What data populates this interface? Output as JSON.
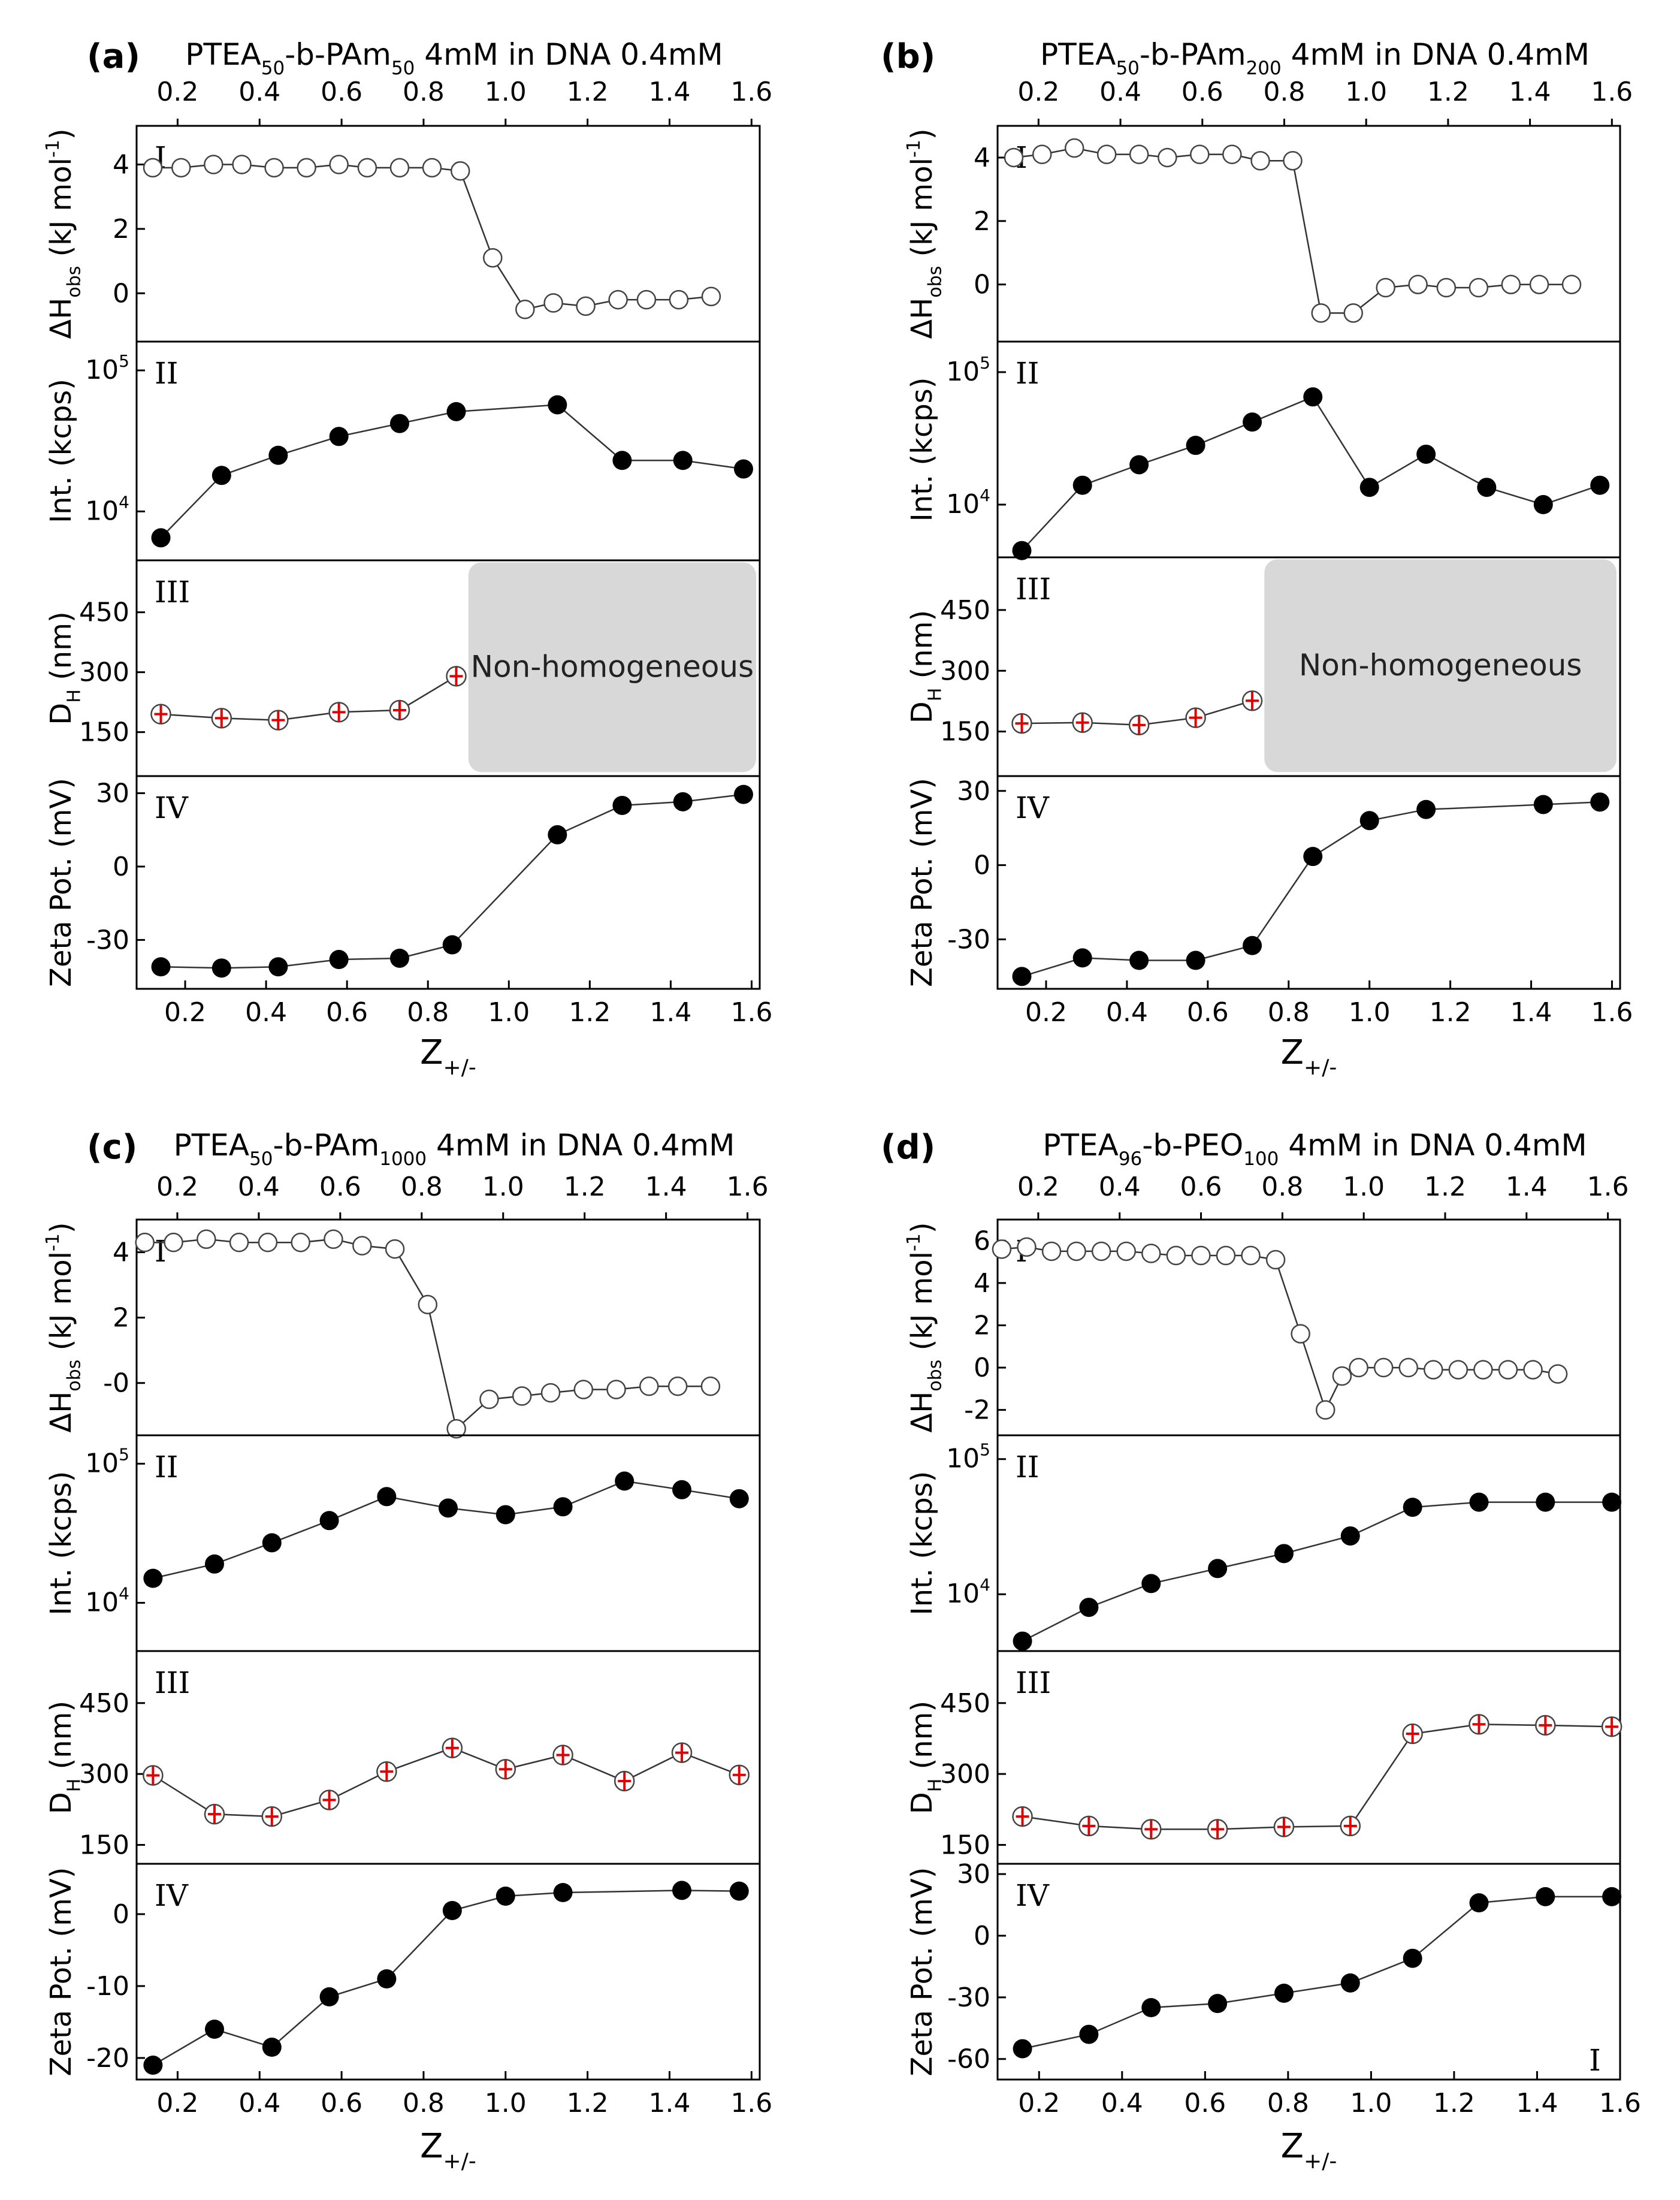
{
  "figure": {
    "colors": {
      "axis": "#000000",
      "line": "#333333",
      "marker_filled": "#000000",
      "marker_open": "#ffffff",
      "error_bar": "#e00000",
      "box_fill": "#d8d8d8"
    },
    "panel_numerals": [
      "I",
      "II",
      "III",
      "IV"
    ],
    "stray_mark": "I"
  },
  "chart_data": [
    {
      "id": "a",
      "type": "line",
      "letter": "(a)",
      "title_parts": [
        [
          "PTEA",
          ""
        ],
        [
          "50",
          "sub"
        ],
        [
          "-b-PAm",
          ""
        ],
        [
          "50",
          "sub"
        ],
        [
          " 4mM in DNA 0.4mM",
          ""
        ]
      ],
      "top_axis": {
        "range": [
          0.1,
          1.62
        ],
        "ticks": [
          "0.2",
          "0.4",
          "0.6",
          "0.8",
          "1.0",
          "1.2",
          "1.4",
          "1.6"
        ]
      },
      "xlabel": [
        "Z",
        "+/-"
      ],
      "x_bottom": {
        "range": [
          0.08,
          1.62
        ],
        "ticks": [
          "0.2",
          "0.4",
          "0.6",
          "0.8",
          "1.0",
          "1.2",
          "1.4",
          "1.6"
        ]
      },
      "series": [
        {
          "name": "I",
          "ylabel": [
            [
              "ΔH",
              ""
            ],
            [
              "obs",
              "sub"
            ],
            [
              " (kJ mol",
              ""
            ],
            [
              "-1",
              "sup"
            ],
            [
              ")",
              ""
            ]
          ],
          "scale": "linear",
          "ylim": [
            -1.5,
            5.2
          ],
          "yticks": [
            "0",
            "2",
            "4"
          ],
          "marker": "open",
          "x": [
            0.12,
            0.19,
            0.27,
            0.34,
            0.42,
            0.5,
            0.58,
            0.65,
            0.73,
            0.81,
            0.88,
            0.96,
            1.04,
            1.11,
            1.19,
            1.27,
            1.34,
            1.42,
            1.5
          ],
          "y": [
            3.9,
            3.9,
            4.0,
            4.0,
            3.9,
            3.9,
            4.0,
            3.9,
            3.9,
            3.9,
            3.8,
            1.1,
            -0.5,
            -0.3,
            -0.4,
            -0.2,
            -0.2,
            -0.2,
            -0.1
          ]
        },
        {
          "name": "II",
          "ylabel": [
            [
              "Int. (kcps)",
              ""
            ]
          ],
          "scale": "log",
          "ylim": [
            4500,
            160000
          ],
          "yticks": [
            "10000",
            "100000"
          ],
          "marker": "filled",
          "x": [
            0.14,
            0.29,
            0.43,
            0.58,
            0.73,
            0.87,
            1.12,
            1.28,
            1.43,
            1.58
          ],
          "y": [
            6500,
            18000,
            25000,
            34000,
            42000,
            51000,
            57000,
            23000,
            23000,
            20000
          ]
        },
        {
          "name": "III",
          "ylabel": [
            [
              "D",
              ""
            ],
            [
              "H",
              "sub"
            ],
            [
              " (nm)",
              ""
            ]
          ],
          "scale": "linear",
          "ylim": [
            40,
            580
          ],
          "yticks": [
            "150",
            "300",
            "450"
          ],
          "marker": "errbar",
          "x": [
            0.14,
            0.29,
            0.43,
            0.58,
            0.73,
            0.87
          ],
          "y": [
            195,
            185,
            180,
            200,
            205,
            290
          ],
          "box": {
            "x0": 0.9,
            "x1": 1.62,
            "y0": 50,
            "y1": 575,
            "label": "Non-homogeneous"
          }
        },
        {
          "name": "IV",
          "ylabel": [
            [
              "Zeta Pot. (mV)",
              ""
            ]
          ],
          "scale": "linear",
          "ylim": [
            -50,
            37
          ],
          "yticks": [
            "-30",
            "0",
            "30"
          ],
          "marker": "filled",
          "x": [
            0.14,
            0.29,
            0.43,
            0.58,
            0.73,
            0.86,
            1.12,
            1.28,
            1.43,
            1.58
          ],
          "y": [
            -41,
            -41.5,
            -41,
            -38,
            -37.5,
            -32,
            13,
            25,
            26.5,
            29.5
          ]
        }
      ]
    },
    {
      "id": "b",
      "type": "line",
      "letter": "(b)",
      "title_parts": [
        [
          "PTEA",
          ""
        ],
        [
          "50",
          "sub"
        ],
        [
          "-b-PAm",
          ""
        ],
        [
          "200",
          "sub"
        ],
        [
          " 4mM in DNA 0.4mM",
          ""
        ]
      ],
      "top_axis": {
        "range": [
          0.1,
          1.62
        ],
        "ticks": [
          "0.2",
          "0.4",
          "0.6",
          "0.8",
          "1.0",
          "1.2",
          "1.4",
          "1.6"
        ]
      },
      "xlabel": [
        "Z",
        "+/-"
      ],
      "x_bottom": {
        "range": [
          0.08,
          1.62
        ],
        "ticks": [
          "0.2",
          "0.4",
          "0.6",
          "0.8",
          "1.0",
          "1.2",
          "1.4",
          "1.6"
        ]
      },
      "series": [
        {
          "name": "I",
          "ylabel": [
            [
              "ΔH",
              ""
            ],
            [
              "obs",
              "sub"
            ],
            [
              " (kJ mol",
              ""
            ],
            [
              "-1",
              "sup"
            ],
            [
              ")",
              ""
            ]
          ],
          "scale": "linear",
          "ylim": [
            -1.8,
            5.0
          ],
          "yticks": [
            "0",
            "2",
            "4"
          ],
          "marker": "open",
          "x": [
            0.12,
            0.19,
            0.27,
            0.35,
            0.43,
            0.5,
            0.58,
            0.66,
            0.73,
            0.81,
            0.88,
            0.96,
            1.04,
            1.12,
            1.19,
            1.27,
            1.35,
            1.42,
            1.5
          ],
          "y": [
            4.0,
            4.1,
            4.3,
            4.1,
            4.1,
            4.0,
            4.1,
            4.1,
            3.9,
            3.9,
            -0.9,
            -0.9,
            -0.1,
            0.0,
            -0.1,
            -0.1,
            0.0,
            0.0,
            0.0
          ]
        },
        {
          "name": "II",
          "ylabel": [
            [
              "Int. (kcps)",
              ""
            ]
          ],
          "scale": "log",
          "ylim": [
            4000,
            170000
          ],
          "yticks": [
            "10000",
            "100000"
          ],
          "marker": "filled",
          "x": [
            0.14,
            0.29,
            0.43,
            0.57,
            0.71,
            0.86,
            1.0,
            1.14,
            1.29,
            1.43,
            1.57
          ],
          "y": [
            4500,
            14000,
            20000,
            28000,
            42000,
            65000,
            13500,
            24000,
            13500,
            10000,
            14000
          ]
        },
        {
          "name": "III",
          "ylabel": [
            [
              "D",
              ""
            ],
            [
              "H",
              "sub"
            ],
            [
              " (nm)",
              ""
            ]
          ],
          "scale": "linear",
          "ylim": [
            40,
            580
          ],
          "yticks": [
            "150",
            "300",
            "450"
          ],
          "marker": "errbar",
          "x": [
            0.14,
            0.29,
            0.43,
            0.57,
            0.71
          ],
          "y": [
            170,
            172,
            166,
            184,
            226
          ],
          "box": {
            "x0": 0.74,
            "x1": 1.62,
            "y0": 50,
            "y1": 575,
            "label": "Non-homogeneous"
          }
        },
        {
          "name": "IV",
          "ylabel": [
            [
              "Zeta Pot. (mV)",
              ""
            ]
          ],
          "scale": "linear",
          "ylim": [
            -50,
            36
          ],
          "yticks": [
            "-30",
            "0",
            "30"
          ],
          "marker": "filled",
          "x": [
            0.14,
            0.29,
            0.43,
            0.57,
            0.71,
            0.86,
            1.0,
            1.14,
            1.43,
            1.57
          ],
          "y": [
            -45,
            -37.5,
            -38.5,
            -38.5,
            -32.5,
            3.5,
            18,
            22.5,
            24.5,
            25.5
          ]
        }
      ]
    },
    {
      "id": "c",
      "type": "line",
      "letter": "(c)",
      "title_parts": [
        [
          "PTEA",
          ""
        ],
        [
          "50",
          "sub"
        ],
        [
          "-b-PAm",
          ""
        ],
        [
          "1000",
          "sub"
        ],
        [
          " 4mM in DNA 0.4mM",
          ""
        ]
      ],
      "top_axis": {
        "range": [
          0.1,
          1.63
        ],
        "ticks": [
          "0.2",
          "0.4",
          "0.6",
          "0.8",
          "1.0",
          "1.2",
          "1.4",
          "1.6"
        ]
      },
      "xlabel": [
        "Z",
        "+/-"
      ],
      "x_bottom": {
        "range": [
          0.1,
          1.62
        ],
        "ticks": [
          "0.2",
          "0.4",
          "0.6",
          "0.8",
          "1.0",
          "1.2",
          "1.4",
          "1.6"
        ]
      },
      "series": [
        {
          "name": "I",
          "ylabel": [
            [
              "ΔH",
              ""
            ],
            [
              "obs",
              "sub"
            ],
            [
              " (kJ mol",
              ""
            ],
            [
              "-1",
              "sup"
            ],
            [
              ")",
              ""
            ]
          ],
          "scale": "linear",
          "ylim": [
            -1.6,
            5.0
          ],
          "yticks": [
            "-0",
            "2",
            "4"
          ],
          "marker": "open",
          "x": [
            0.12,
            0.19,
            0.27,
            0.35,
            0.42,
            0.5,
            0.58,
            0.65,
            0.73,
            0.81,
            0.88,
            0.96,
            1.04,
            1.11,
            1.19,
            1.27,
            1.35,
            1.42,
            1.5
          ],
          "y": [
            4.3,
            4.3,
            4.4,
            4.3,
            4.3,
            4.3,
            4.4,
            4.2,
            4.1,
            2.4,
            -1.4,
            -0.5,
            -0.4,
            -0.3,
            -0.2,
            -0.2,
            -0.1,
            -0.1,
            -0.1
          ]
        },
        {
          "name": "II",
          "ylabel": [
            [
              "Int. (kcps)",
              ""
            ]
          ],
          "scale": "log",
          "ylim": [
            4500,
            160000
          ],
          "yticks": [
            "10000",
            "100000"
          ],
          "marker": "filled",
          "x": [
            0.14,
            0.29,
            0.43,
            0.57,
            0.71,
            0.86,
            1.0,
            1.14,
            1.29,
            1.43,
            1.57
          ],
          "y": [
            15000,
            19000,
            27000,
            39000,
            58000,
            48000,
            43000,
            49000,
            75000,
            65000,
            56000
          ]
        },
        {
          "name": "III",
          "ylabel": [
            [
              "D",
              ""
            ],
            [
              "H",
              "sub"
            ],
            [
              " (nm)",
              ""
            ]
          ],
          "scale": "linear",
          "ylim": [
            110,
            560
          ],
          "yticks": [
            "150",
            "300",
            "450"
          ],
          "marker": "errbar",
          "x": [
            0.14,
            0.29,
            0.43,
            0.57,
            0.71,
            0.87,
            1.0,
            1.14,
            1.29,
            1.43,
            1.57
          ],
          "y": [
            297,
            215,
            210,
            245,
            305,
            355,
            310,
            340,
            285,
            345,
            298
          ]
        },
        {
          "name": "IV",
          "ylabel": [
            [
              "Zeta Pot. (mV)",
              ""
            ]
          ],
          "scale": "linear",
          "ylim": [
            -23,
            7
          ],
          "yticks": [
            "-20",
            "-10",
            "0"
          ],
          "marker": "filled",
          "x": [
            0.14,
            0.29,
            0.43,
            0.57,
            0.71,
            0.87,
            1.0,
            1.14,
            1.43,
            1.57
          ],
          "y": [
            -21,
            -16,
            -18.5,
            -11.5,
            -9,
            0.5,
            2.5,
            3,
            3.3,
            3.2
          ]
        }
      ]
    },
    {
      "id": "d",
      "type": "line",
      "letter": "(d)",
      "title_parts": [
        [
          "PTEA",
          ""
        ],
        [
          "96",
          "sub"
        ],
        [
          "-b-PEO",
          ""
        ],
        [
          "100",
          "sub"
        ],
        [
          " 4mM in DNA 0.4mM",
          ""
        ]
      ],
      "top_axis": {
        "range": [
          0.1,
          1.63
        ],
        "ticks": [
          "0.2",
          "0.4",
          "0.6",
          "0.8",
          "1.0",
          "1.2",
          "1.4",
          "1.6"
        ]
      },
      "xlabel": [
        "Z",
        "+/-"
      ],
      "x_bottom": {
        "range": [
          0.1,
          1.6
        ],
        "ticks": [
          "0.2",
          "0.4",
          "0.6",
          "0.8",
          "1.0",
          "1.2",
          "1.4",
          "1.6"
        ]
      },
      "series": [
        {
          "name": "I",
          "ylabel": [
            [
              "ΔH",
              ""
            ],
            [
              "obs",
              "sub"
            ],
            [
              " (kJ mol",
              ""
            ],
            [
              "-1",
              "sup"
            ],
            [
              ")",
              ""
            ]
          ],
          "scale": "linear",
          "ylim": [
            -3.2,
            7.0
          ],
          "yticks": [
            "-2",
            "0",
            "2",
            "4",
            "6"
          ],
          "marker": "open",
          "x": [
            0.11,
            0.17,
            0.23,
            0.29,
            0.35,
            0.41,
            0.47,
            0.53,
            0.59,
            0.65,
            0.71,
            0.77,
            0.83,
            0.89,
            0.93,
            0.97,
            1.03,
            1.09,
            1.15,
            1.21,
            1.27,
            1.33,
            1.39,
            1.45
          ],
          "y": [
            5.6,
            5.7,
            5.5,
            5.5,
            5.5,
            5.5,
            5.4,
            5.3,
            5.3,
            5.3,
            5.3,
            5.1,
            1.6,
            -2.0,
            -0.4,
            0.0,
            0.0,
            0.0,
            -0.1,
            -0.1,
            -0.1,
            -0.1,
            -0.1,
            -0.3
          ]
        },
        {
          "name": "II",
          "ylabel": [
            [
              "Int. (kcps)",
              ""
            ]
          ],
          "scale": "log",
          "ylim": [
            3800,
            150000
          ],
          "yticks": [
            "10000",
            "100000"
          ],
          "marker": "filled",
          "x": [
            0.16,
            0.32,
            0.47,
            0.63,
            0.79,
            0.95,
            1.1,
            1.26,
            1.42,
            1.58
          ],
          "y": [
            4500,
            8000,
            12000,
            15500,
            20000,
            27000,
            44000,
            48000,
            48000,
            48000
          ]
        },
        {
          "name": "III",
          "ylabel": [
            [
              "D",
              ""
            ],
            [
              "H",
              "sub"
            ],
            [
              " (nm)",
              ""
            ]
          ],
          "scale": "linear",
          "ylim": [
            110,
            560
          ],
          "yticks": [
            "150",
            "300",
            "450"
          ],
          "marker": "errbar",
          "x": [
            0.16,
            0.32,
            0.47,
            0.63,
            0.79,
            0.95,
            1.1,
            1.26,
            1.42,
            1.58
          ],
          "y": [
            210,
            190,
            183,
            183,
            188,
            190,
            385,
            405,
            403,
            400
          ]
        },
        {
          "name": "IV",
          "ylabel": [
            [
              "Zeta Pot. (mV)",
              ""
            ]
          ],
          "scale": "linear",
          "ylim": [
            -70,
            35
          ],
          "yticks": [
            "-60",
            "-30",
            "0",
            "30"
          ],
          "marker": "filled",
          "x": [
            0.16,
            0.32,
            0.47,
            0.63,
            0.79,
            0.95,
            1.1,
            1.26,
            1.42,
            1.58
          ],
          "y": [
            -55,
            -48,
            -35,
            -33,
            -28,
            -23,
            -11,
            16,
            19,
            19
          ]
        }
      ]
    }
  ]
}
